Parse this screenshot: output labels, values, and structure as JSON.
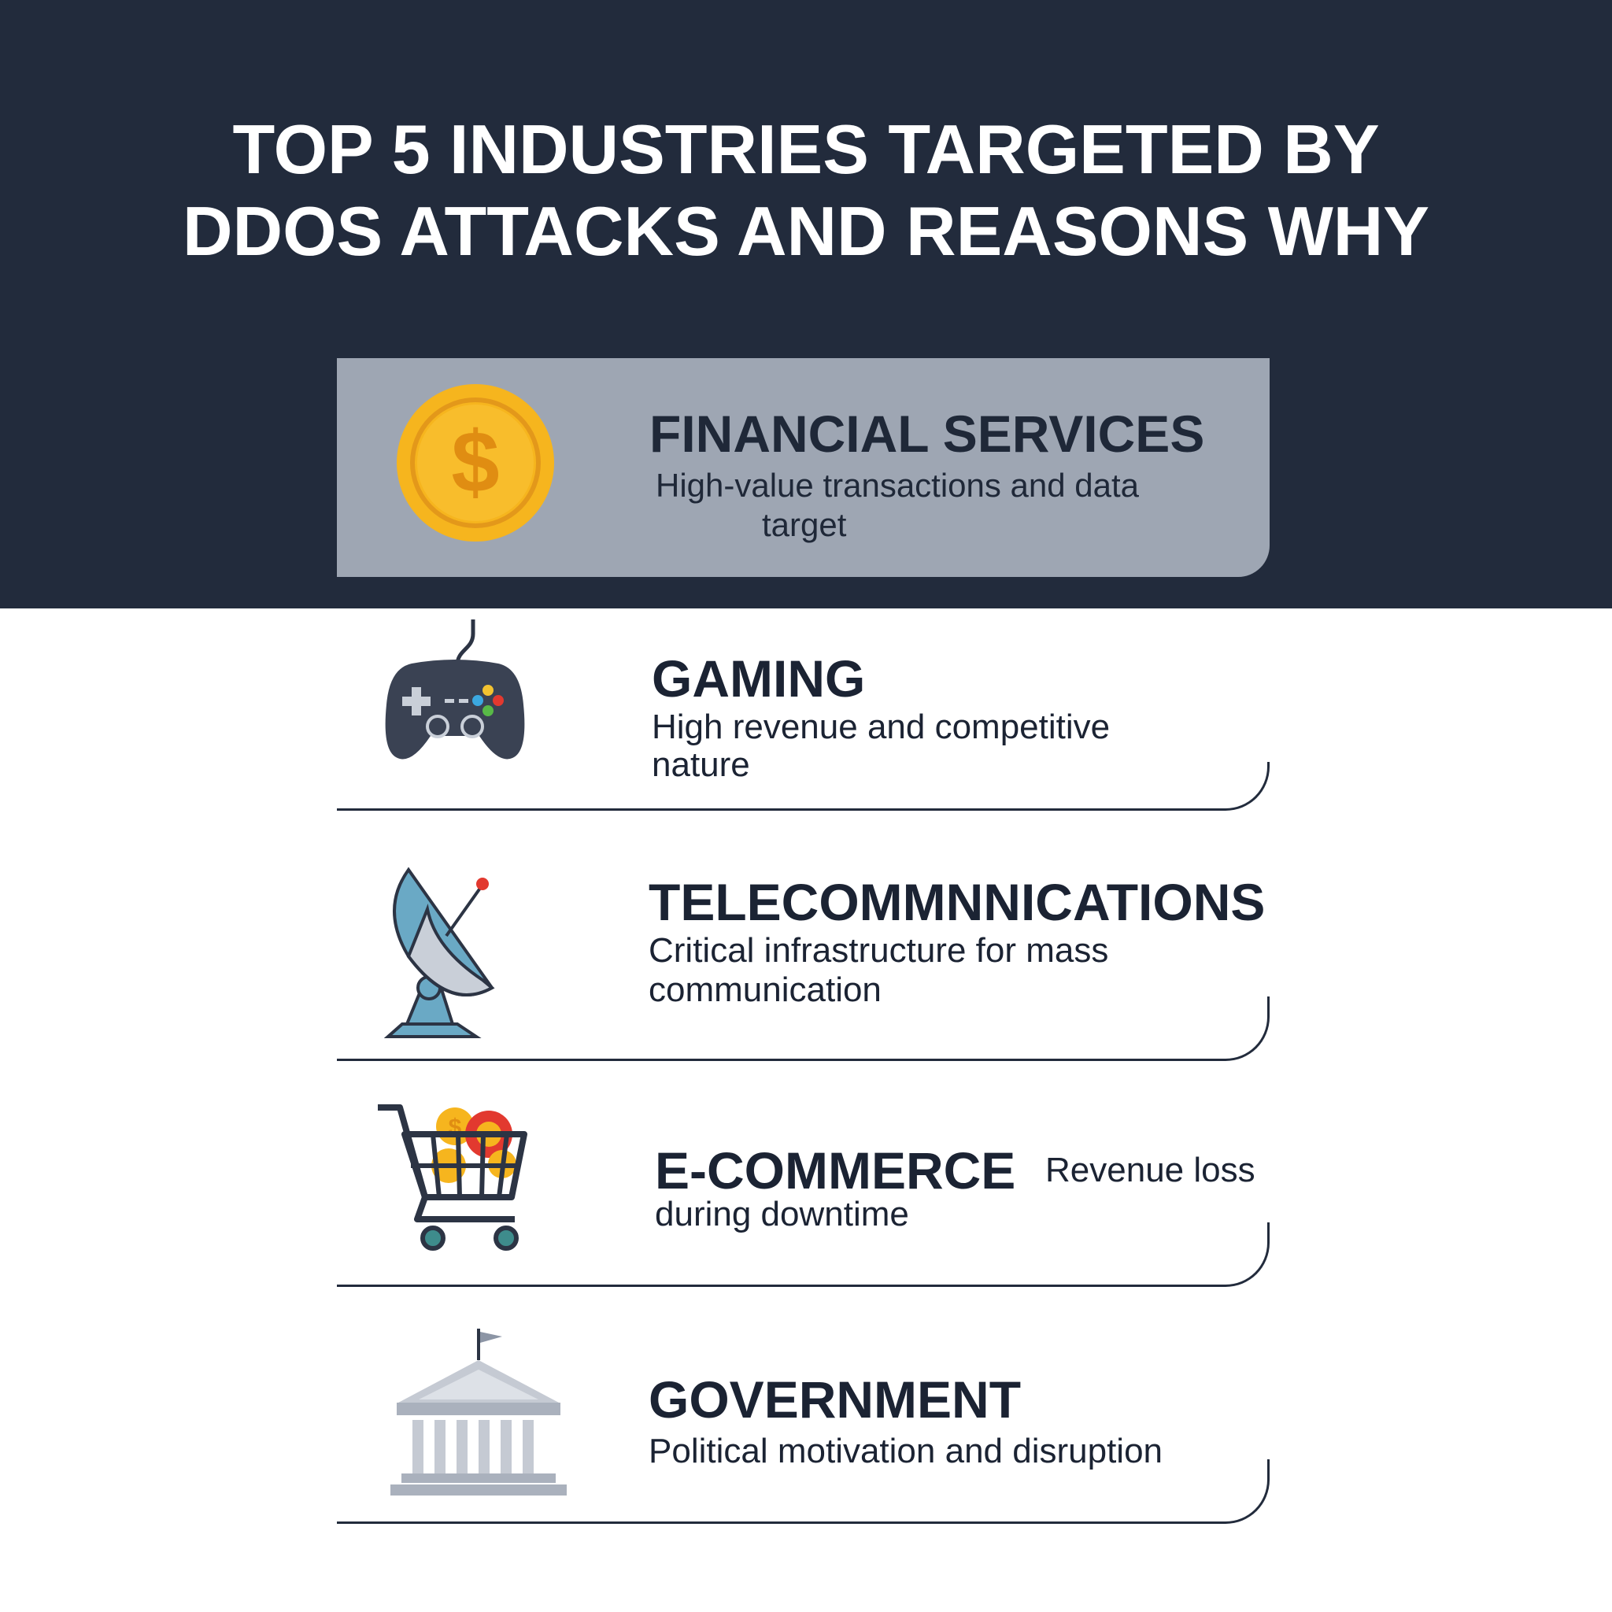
{
  "title": {
    "line1": "TOP 5 INDUSTRIES TARGETED BY",
    "line2": "DDOS ATTACKS AND REASONS WHY"
  },
  "industries": [
    {
      "icon": "dollar-coin-icon",
      "name": "FINANCIAL SERVICES",
      "reason_line1": "High-value transactions and data",
      "reason_line2": "target"
    },
    {
      "icon": "game-controller-icon",
      "name": "GAMING",
      "reason_line1": "High revenue and competitive",
      "reason_line2": "nature"
    },
    {
      "icon": "satellite-dish-icon",
      "name": "TELECOMMNNICATIONS",
      "reason_line1": "Critical infrastructure for mass",
      "reason_line2": "communication"
    },
    {
      "icon": "shopping-cart-icon",
      "name": "E-COMMERCE",
      "reason_line1": "Revenue loss",
      "reason_line2": "during downtime"
    },
    {
      "icon": "government-building-icon",
      "name": "GOVERNMENT",
      "reason_line1": "Political motivation and disruption",
      "reason_line2": ""
    }
  ],
  "colors": {
    "header_bg": "#222b3c",
    "featured_card_bg": "#9ea6b3",
    "coin": "#f6b51e",
    "accent_red": "#e2392f"
  }
}
